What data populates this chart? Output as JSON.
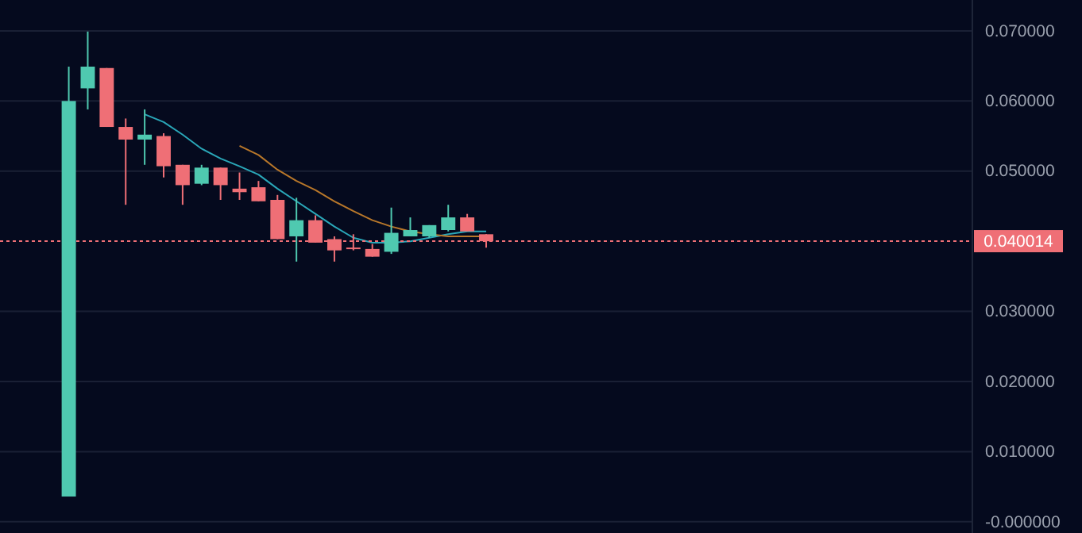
{
  "chart_data": {
    "type": "candlestick",
    "categories": [
      null,
      null,
      null,
      null,
      null,
      null,
      null,
      null,
      null,
      null,
      null,
      null,
      null,
      null,
      null,
      null,
      null,
      null,
      null,
      null,
      null,
      null,
      null,
      null,
      null,
      null,
      null,
      null,
      null,
      null,
      null,
      null,
      null,
      null,
      null,
      null,
      null,
      null,
      null,
      null,
      null,
      null,
      null,
      null,
      null,
      null,
      null,
      null,
      null,
      null,
      null
    ],
    "ohlc": [
      null,
      null,
      null,
      [
        0.0036,
        0.0649,
        0.0036,
        0.06
      ],
      [
        0.0618,
        0.0699,
        0.0588,
        0.0649
      ],
      [
        0.0647,
        0.0647,
        0.0563,
        0.0563
      ],
      [
        0.0563,
        0.0575,
        0.0452,
        0.0545
      ],
      [
        0.0545,
        0.0588,
        0.0509,
        0.0552
      ],
      [
        0.055,
        0.0554,
        0.0491,
        0.0507
      ],
      [
        0.0509,
        0.0509,
        0.0452,
        0.048
      ],
      [
        0.0482,
        0.0509,
        0.048,
        0.0505
      ],
      [
        0.0505,
        0.0505,
        0.0459,
        0.048
      ],
      [
        0.0475,
        0.0498,
        0.0459,
        0.047
      ],
      [
        0.0477,
        0.0486,
        0.0457,
        0.0457
      ],
      [
        0.0459,
        0.0466,
        0.0403,
        0.0403
      ],
      [
        0.0407,
        0.0462,
        0.0371,
        0.043
      ],
      [
        0.043,
        0.0437,
        0.0398,
        0.0398
      ],
      [
        0.0403,
        0.0407,
        0.0371,
        0.0387
      ],
      [
        0.0391,
        0.041,
        0.0387,
        0.0389
      ],
      [
        0.0389,
        0.0396,
        0.0378,
        0.0378
      ],
      [
        0.0385,
        0.0448,
        0.0382,
        0.0412
      ],
      [
        0.0407,
        0.0434,
        0.0407,
        0.0416
      ],
      [
        0.0407,
        0.0423,
        0.0405,
        0.0423
      ],
      [
        0.0416,
        0.0452,
        0.0414,
        0.0434
      ],
      [
        0.0434,
        0.0439,
        0.0414,
        0.0414
      ],
      [
        0.041,
        0.041,
        0.0391,
        0.04
      ],
      null,
      null,
      null,
      null,
      null,
      null,
      null,
      null,
      null,
      null,
      null,
      null,
      null,
      null,
      null,
      null,
      null,
      null,
      null,
      null,
      null,
      null,
      null,
      null,
      null
    ],
    "colors": [
      null,
      null,
      null,
      "#4fc9b0",
      "#4fc9b0",
      "#ef6f76",
      "#ef6f76",
      "#4fc9b0",
      "#ef6f76",
      "#ef6f76",
      "#4fc9b0",
      "#ef6f76",
      "#ef6f76",
      "#ef6f76",
      "#ef6f76",
      "#4fc9b0",
      "#ef6f76",
      "#ef6f76",
      "#ef6f76",
      "#ef6f76",
      "#4fc9b0",
      "#4fc9b0",
      "#4fc9b0",
      "#4fc9b0",
      "#ef6f76",
      "#ef6f76",
      null,
      null,
      null,
      null,
      null,
      null,
      null,
      null,
      null,
      null,
      null,
      null,
      null,
      null,
      null,
      null,
      null,
      null,
      null,
      null,
      null,
      null,
      null,
      null,
      null
    ],
    "series": [
      {
        "type": "line",
        "color": "#2aa7b8",
        "values": [
          null,
          null,
          null,
          null,
          null,
          null,
          null,
          0.0581,
          0.057,
          0.0552,
          0.0532,
          0.0518,
          0.0507,
          0.0495,
          0.0475,
          0.0457,
          0.0439,
          0.0421,
          0.0405,
          0.0398,
          0.0398,
          0.04,
          0.0405,
          0.041,
          0.0414,
          0.0414,
          null,
          null,
          null,
          null,
          null,
          null,
          null,
          null,
          null,
          null,
          null,
          null,
          null,
          null,
          null,
          null,
          null,
          null,
          null,
          null,
          null,
          null,
          null,
          null,
          null
        ]
      },
      {
        "type": "line",
        "color": "#b8772a",
        "values": [
          null,
          null,
          null,
          null,
          null,
          null,
          null,
          null,
          null,
          null,
          null,
          null,
          0.0536,
          0.0523,
          0.0502,
          0.0486,
          0.0473,
          0.0457,
          0.0443,
          0.043,
          0.0421,
          0.0414,
          0.041,
          0.0407,
          0.0407,
          0.0407,
          null,
          null,
          null,
          null,
          null,
          null,
          null,
          null,
          null,
          null,
          null,
          null,
          null,
          null,
          null,
          null,
          null,
          null,
          null,
          null,
          null,
          null,
          null,
          null,
          null
        ]
      }
    ],
    "ylim": [
      -0.0016,
      0.0744
    ],
    "yticks": [
      {
        "value": 0,
        "label": "-0.000000"
      },
      {
        "value": 0.01,
        "label": "0.010000"
      },
      {
        "value": 0.02,
        "label": "0.020000"
      },
      {
        "value": 0.03,
        "label": "0.030000"
      },
      {
        "value": 0.05,
        "label": "0.050000"
      },
      {
        "value": 0.06,
        "label": "0.060000"
      },
      {
        "value": 0.07,
        "label": "0.070000"
      }
    ],
    "ref_lines": [
      {
        "axis": "y",
        "value": 0.040014,
        "label": "0.040014",
        "color": "#ef6f76",
        "line_style": "dashed"
      }
    ],
    "grid": "y",
    "tick_labels": "y"
  }
}
